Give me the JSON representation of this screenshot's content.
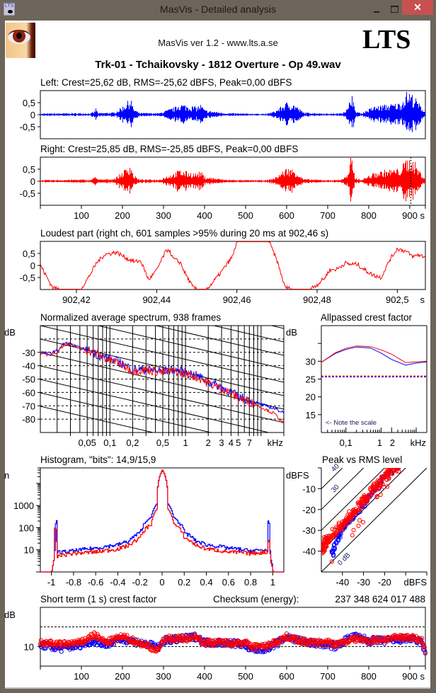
{
  "window": {
    "title": "MasVis - Detailed analysis",
    "close_glyph": "✕"
  },
  "header": {
    "version_text": "MasVis ver 1.2 - www.lts.a.se",
    "logo_text": "LTS",
    "track_title": "Trk-01 - Tchaikovsky - 1812 Overture - Op 49.wav",
    "app_icon_text": "LTS"
  },
  "colors": {
    "left": "#0000ff",
    "right": "#ff0000"
  },
  "chart_data": [
    {
      "id": "left_waveform",
      "type": "area",
      "title": "Left: Crest=25,62 dB, RMS=-25,62 dBFS, Peak=0,00 dBFS",
      "ylim": [
        -1,
        1
      ],
      "yticks": [
        "0,5",
        "0",
        "-0,5"
      ],
      "ytick_values": [
        0.5,
        0,
        -0.5
      ],
      "xlim": [
        0,
        938
      ],
      "xlabel": "s",
      "envelope": {
        "x": [
          0,
          50,
          100,
          120,
          130,
          135,
          140,
          180,
          195,
          210,
          220,
          225,
          240,
          290,
          300,
          330,
          335,
          380,
          390,
          400,
          450,
          500,
          550,
          570,
          600,
          620,
          640,
          700,
          730,
          750,
          755,
          760,
          765,
          780,
          810,
          840,
          870,
          880,
          890,
          900,
          910,
          920,
          938
        ],
        "amp": [
          0.05,
          0.06,
          0.07,
          0.06,
          0.12,
          0.3,
          0.07,
          0.1,
          0.3,
          0.55,
          0.75,
          0.3,
          0.08,
          0.07,
          0.15,
          0.35,
          0.5,
          0.35,
          0.45,
          0.2,
          0.07,
          0.05,
          0.04,
          0.15,
          0.55,
          0.45,
          0.1,
          0.05,
          0.06,
          0.3,
          1.0,
          1.0,
          0.2,
          0.06,
          0.35,
          0.45,
          0.5,
          0.6,
          1.0,
          1.0,
          0.8,
          0.55,
          0.1
        ]
      }
    },
    {
      "id": "right_waveform",
      "type": "area",
      "title": "Right: Crest=25,85 dB, RMS=-25,85 dBFS, Peak=0,00 dBFS",
      "ylim": [
        -1,
        1
      ],
      "yticks": [
        "0,5",
        "0",
        "-0,5"
      ],
      "ytick_values": [
        0.5,
        0,
        -0.5
      ],
      "xlim": [
        0,
        938
      ],
      "xticks": [
        "100",
        "200",
        "300",
        "400",
        "500",
        "600",
        "700",
        "800",
        "900"
      ],
      "xtick_values": [
        100,
        200,
        300,
        400,
        500,
        600,
        700,
        800,
        900
      ],
      "xunit": "s",
      "marker_x": 902.46,
      "envelope": {
        "x": [
          0,
          50,
          100,
          120,
          130,
          135,
          140,
          180,
          195,
          210,
          220,
          225,
          240,
          290,
          300,
          330,
          335,
          380,
          390,
          400,
          450,
          500,
          550,
          570,
          600,
          620,
          640,
          700,
          730,
          750,
          755,
          760,
          765,
          780,
          810,
          840,
          870,
          880,
          890,
          900,
          910,
          920,
          938
        ],
        "amp": [
          0.05,
          0.06,
          0.08,
          0.06,
          0.15,
          0.3,
          0.07,
          0.12,
          0.35,
          0.6,
          0.8,
          0.3,
          0.08,
          0.08,
          0.18,
          0.4,
          0.5,
          0.35,
          0.45,
          0.2,
          0.07,
          0.05,
          0.05,
          0.15,
          0.6,
          0.5,
          0.1,
          0.05,
          0.07,
          0.3,
          1.0,
          1.0,
          0.2,
          0.06,
          0.35,
          0.5,
          0.55,
          0.65,
          1.0,
          1.0,
          0.9,
          0.55,
          0.1
        ]
      }
    },
    {
      "id": "loudest_part",
      "type": "line",
      "title": "Loudest part (right ch, 601 samples >95% during 20 ms at 902,46 s)",
      "ylim": [
        -1,
        1
      ],
      "yticks": [
        "0,5",
        "0",
        "-0,5"
      ],
      "ytick_values": [
        0.5,
        0,
        -0.5
      ],
      "xlim": [
        902.411,
        902.507
      ],
      "xticks": [
        "902,42",
        "902,44",
        "902,46",
        "902,48",
        "902,5"
      ],
      "xtick_values": [
        902.42,
        902.44,
        902.46,
        902.48,
        902.5
      ],
      "xunit": "s",
      "series": [
        {
          "name": "Right",
          "x": [
            902.411,
            902.412,
            902.414,
            902.416,
            902.418,
            902.421,
            902.423,
            902.425,
            902.427,
            902.43,
            902.433,
            902.434,
            902.4345,
            902.436,
            902.438,
            902.44,
            902.442,
            902.443,
            902.444,
            902.446,
            902.447,
            902.449,
            902.45,
            902.452,
            902.453,
            902.456,
            902.459,
            902.46,
            902.462,
            902.463,
            902.465,
            902.468,
            902.47,
            902.472,
            902.474,
            902.476,
            902.478,
            902.48,
            902.482,
            902.483,
            902.485,
            902.487,
            902.488,
            902.49,
            902.492,
            902.494,
            902.496,
            902.498,
            902.5,
            902.502,
            902.504,
            902.505,
            902.507
          ],
          "y": [
            0.05,
            -0.3,
            -0.9,
            -1.0,
            -1.0,
            -1.0,
            -0.5,
            0.1,
            0.45,
            0.55,
            0.25,
            0.2,
            0.15,
            0.2,
            -0.6,
            -0.2,
            0.5,
            0.7,
            0.3,
            0.1,
            -0.3,
            -0.9,
            -1.0,
            -1.0,
            -0.9,
            -0.3,
            0.4,
            1.0,
            1.0,
            1.0,
            1.0,
            1.0,
            0.2,
            -0.9,
            -1.0,
            -1.0,
            -1.0,
            -0.8,
            -0.5,
            -0.2,
            -0.15,
            0.1,
            0.05,
            0.05,
            -0.2,
            -0.4,
            -0.5,
            0.2,
            0.7,
            0.6,
            0.35,
            0.45,
            0.35
          ]
        }
      ]
    },
    {
      "id": "spectrum",
      "type": "line",
      "title": "Normalized average spectrum, 938 frames",
      "ylabel": "dB",
      "ylim": [
        -90,
        -10
      ],
      "yticks": [
        "-30",
        "-40",
        "-50",
        "-60",
        "-70",
        "-80"
      ],
      "ytick_values": [
        -30,
        -40,
        -50,
        -60,
        -70,
        -80
      ],
      "xscale": "log",
      "xlim_khz": [
        0.012,
        20
      ],
      "xticks": [
        "0,05",
        "0,1",
        "0,2",
        "0,5",
        "1",
        "2",
        "3",
        "4",
        "5",
        "7",
        "kHz"
      ],
      "xtick_values": [
        0.05,
        0.1,
        0.2,
        0.5,
        1,
        2,
        3,
        4,
        5,
        7
      ],
      "grid": "dashed horizontal every 10 dB, diagonal pink-noise slope lines",
      "series": [
        {
          "name": "Left",
          "x": [
            0.012,
            0.015,
            0.02,
            0.025,
            0.03,
            0.04,
            0.05,
            0.07,
            0.1,
            0.13,
            0.2,
            0.3,
            0.5,
            0.7,
            1,
            1.5,
            2,
            3,
            4,
            5,
            7,
            10,
            15,
            20
          ],
          "y": [
            -30,
            -31,
            -29,
            -23,
            -24,
            -27,
            -28,
            -32,
            -35,
            -37,
            -43,
            -43,
            -44,
            -43,
            -45,
            -48,
            -52,
            -56,
            -60,
            -63,
            -66,
            -69,
            -72,
            -75
          ]
        },
        {
          "name": "Right",
          "x": [
            0.012,
            0.015,
            0.02,
            0.025,
            0.03,
            0.04,
            0.05,
            0.07,
            0.1,
            0.13,
            0.2,
            0.3,
            0.5,
            0.7,
            1,
            1.5,
            2,
            3,
            4,
            5,
            7,
            10,
            15,
            20
          ],
          "y": [
            -30,
            -32,
            -30,
            -24,
            -24,
            -27,
            -28,
            -32,
            -36,
            -38,
            -44,
            -43,
            -45,
            -44,
            -46,
            -49,
            -53,
            -57,
            -61,
            -64,
            -67,
            -71,
            -76,
            -83
          ]
        }
      ]
    },
    {
      "id": "allpassed_crest",
      "type": "line",
      "title": "Allpassed crest factor",
      "ylabel": "dB",
      "ylim": [
        10,
        40
      ],
      "yticks": [
        "30",
        "25",
        "20",
        "15"
      ],
      "ytick_values": [
        30,
        25,
        20,
        15
      ],
      "xscale": "log",
      "xlim_khz": [
        0.02,
        20
      ],
      "xticks": [
        "0,1",
        "1",
        "2",
        "kHz"
      ],
      "xtick_values": [
        0.1,
        1,
        2
      ],
      "annotation": "<- Note the scale",
      "series": [
        {
          "name": "Left",
          "x": [
            0.02,
            0.05,
            0.1,
            0.2,
            0.5,
            1,
            2,
            5,
            10,
            20
          ],
          "y": [
            29.7,
            32.2,
            33.3,
            34,
            33.7,
            32.3,
            30.5,
            28.9,
            29.5,
            29.8
          ]
        },
        {
          "name": "Right",
          "x": [
            0.02,
            0.05,
            0.1,
            0.2,
            0.5,
            1,
            2,
            5,
            10,
            20
          ],
          "y": [
            29.7,
            32.4,
            33.6,
            34.3,
            34.1,
            33.2,
            32,
            29.6,
            29.8,
            30
          ]
        }
      ],
      "reference_lines": [
        {
          "name": "Left overall crest",
          "y": 25.62
        },
        {
          "name": "Right overall crest",
          "y": 25.85
        }
      ]
    },
    {
      "id": "histogram",
      "type": "line",
      "title": "Histogram, \"bits\": 14,9/15,9",
      "ylabel": "n",
      "yscale": "log",
      "ylim": [
        1,
        50000
      ],
      "yticks": [
        "1000",
        "100",
        "10"
      ],
      "ytick_values": [
        1000,
        100,
        10
      ],
      "xlim": [
        -1.1,
        1.1
      ],
      "xticks": [
        "-1",
        "-0.8",
        "-0.6",
        "-0.4",
        "-0.2",
        "0",
        "0.2",
        "0.4",
        "0.6",
        "0.8",
        "1"
      ],
      "xtick_values": [
        -1,
        -0.8,
        -0.6,
        -0.4,
        -0.2,
        0,
        0.2,
        0.4,
        0.6,
        0.8,
        1
      ],
      "series": [
        {
          "name": "Left",
          "x": [
            -1.1,
            -1.0,
            -0.98,
            -0.97,
            -0.96,
            -0.95,
            -0.9,
            -0.8,
            -0.6,
            -0.4,
            -0.3,
            -0.2,
            -0.1,
            -0.05,
            0,
            0.05,
            0.1,
            0.2,
            0.3,
            0.4,
            0.6,
            0.8,
            0.95,
            0.96,
            0.97,
            0.98,
            1.0,
            1.1
          ],
          "y": [
            1,
            1,
            3,
            10,
            300,
            8,
            8,
            9,
            12,
            17,
            25,
            60,
            300,
            1200,
            40000,
            1200,
            300,
            60,
            25,
            17,
            12,
            9,
            10,
            300,
            10,
            3,
            1,
            1
          ]
        },
        {
          "name": "Right",
          "x": [
            -1.1,
            -1.0,
            -0.98,
            -0.97,
            -0.96,
            -0.95,
            -0.9,
            -0.8,
            -0.6,
            -0.4,
            -0.3,
            -0.2,
            -0.1,
            -0.05,
            0,
            0.05,
            0.1,
            0.2,
            0.3,
            0.4,
            0.6,
            0.8,
            0.95,
            0.96,
            0.97,
            0.98,
            1.0,
            1.1
          ],
          "y": [
            1,
            1,
            3,
            150,
            30,
            5,
            6,
            7,
            8,
            11,
            16,
            35,
            150,
            700,
            40000,
            700,
            150,
            35,
            16,
            11,
            8,
            7,
            8,
            40,
            8,
            3,
            1,
            1
          ]
        }
      ]
    },
    {
      "id": "peak_vs_rms",
      "type": "scatter",
      "title": "Peak vs RMS level",
      "ylabel": "dBFS",
      "ylim": [
        -50,
        0
      ],
      "yticks": [
        "-10",
        "-20",
        "-30",
        "-40"
      ],
      "ytick_values": [
        -10,
        -20,
        -30,
        -40
      ],
      "xlabel": "dBFS",
      "xlim": [
        -50,
        0
      ],
      "xticks": [
        "-40",
        "-30",
        "-20"
      ],
      "xtick_values": [
        -40,
        -30,
        -20
      ],
      "diagonal_labels": [
        "40",
        "30",
        "0 dB"
      ],
      "series": [
        {
          "name": "Left",
          "x": [
            -45,
            -44,
            -44,
            -43,
            -42,
            -41,
            -40,
            -38,
            -36,
            -34,
            -32,
            -30,
            -28,
            -26,
            -24,
            -22,
            -20,
            -18,
            -16,
            -14
          ],
          "y": [
            -42,
            -40,
            -38,
            -35,
            -33,
            -31,
            -29,
            -27,
            -25,
            -23,
            -20,
            -18,
            -15,
            -12,
            -10,
            -7,
            -4,
            -3,
            -1,
            0
          ]
        },
        {
          "name": "Right",
          "x": [
            -50,
            -49,
            -48,
            -47,
            -45,
            -43,
            -41,
            -39,
            -37,
            -35,
            -33,
            -31,
            -29,
            -27,
            -25,
            -23,
            -21,
            -19,
            -17,
            -15,
            -13,
            -45
          ],
          "y": [
            -40,
            -38,
            -36,
            -34,
            -32,
            -30,
            -28,
            -26,
            -24,
            -22,
            -20,
            -17,
            -15,
            -12,
            -10,
            -8,
            -5,
            -3,
            -1,
            0,
            0,
            -45
          ]
        }
      ]
    },
    {
      "id": "short_term_crest",
      "type": "scatter",
      "title": "Short term (1 s) crest factor",
      "checksum_label": "Checksum (energy):",
      "checksum_value": "237 348 624 017 488",
      "ylabel": "dB",
      "ylim": [
        5,
        20
      ],
      "yticks": [
        "10"
      ],
      "ytick_values": [
        10
      ],
      "ref_lines": [
        10,
        15
      ],
      "xlim": [
        0,
        938
      ],
      "xticks": [
        "100",
        "200",
        "300",
        "400",
        "500",
        "600",
        "700",
        "800",
        "900"
      ],
      "xtick_values": [
        100,
        200,
        300,
        400,
        500,
        600,
        700,
        800,
        900
      ],
      "xunit": "s",
      "series": [
        {
          "name": "Left",
          "x": [
            0,
            50,
            100,
            130,
            160,
            200,
            240,
            290,
            300,
            350,
            380,
            400,
            450,
            500,
            510,
            550,
            580,
            600,
            650,
            700,
            720,
            750,
            770,
            800,
            850,
            900,
            930,
            938
          ],
          "y": [
            10.5,
            9.5,
            10.5,
            11.5,
            10.5,
            12,
            11,
            9.8,
            11.5,
            12,
            12.5,
            11,
            11,
            10.5,
            9,
            9.5,
            11,
            12.5,
            11,
            10.5,
            10,
            12,
            12.5,
            11.5,
            11.5,
            12,
            11,
            8
          ]
        },
        {
          "name": "Right",
          "x": [
            0,
            50,
            100,
            130,
            160,
            200,
            240,
            290,
            300,
            350,
            380,
            400,
            450,
            500,
            510,
            550,
            580,
            600,
            650,
            700,
            720,
            750,
            770,
            800,
            850,
            900,
            930,
            938
          ],
          "y": [
            11,
            10.5,
            11,
            13,
            11,
            12.5,
            11,
            9,
            12,
            12,
            12.5,
            11,
            11,
            11,
            10,
            10,
            11.5,
            12.5,
            11,
            11,
            10.5,
            11.5,
            12,
            11.5,
            12,
            12.5,
            11.5,
            8.5
          ]
        }
      ]
    }
  ]
}
